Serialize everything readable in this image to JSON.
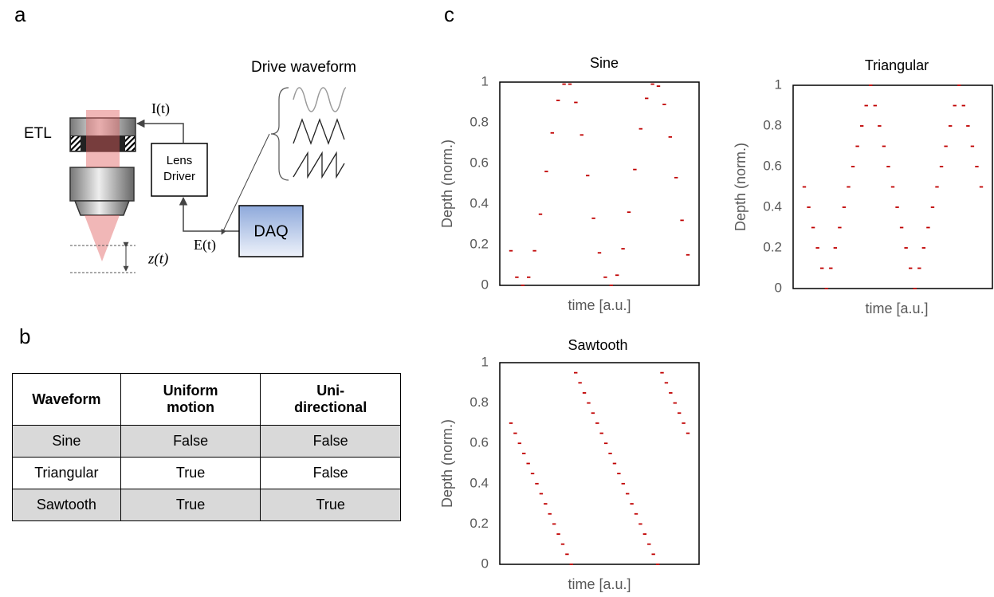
{
  "panel_labels": [
    "a",
    "b",
    "c"
  ],
  "diagram": {
    "drive_waveform": "Drive waveform",
    "etl": "ETL",
    "current": "I(t)",
    "lens_driver": [
      "Lens",
      "Driver"
    ],
    "daq": "DAQ",
    "voltage": "E(t)",
    "depth": "z(t)"
  },
  "table": {
    "header": [
      "Waveform",
      "Uniform motion",
      "Uni-directional"
    ],
    "rows": [
      [
        "Sine",
        "False",
        "False"
      ],
      [
        "Triangular",
        "True",
        "False"
      ],
      [
        "Sawtooth",
        "True",
        "True"
      ]
    ]
  },
  "chart_data": [
    {
      "type": "line",
      "title": "Sine",
      "xlabel": "time [a.u.]",
      "ylabel": "Depth (norm.)",
      "color": "#c00000",
      "values": [
        0.17,
        0.04,
        0,
        0.04,
        0.17,
        0.35,
        0.56,
        0.75,
        0.91,
        0.99,
        0.99,
        0.9,
        0.74,
        0.54,
        0.33,
        0.16,
        0.04,
        0,
        0.05,
        0.18,
        0.36,
        0.57,
        0.77,
        0.92,
        0.99,
        0.98,
        0.89,
        0.73,
        0.53,
        0.32,
        0.15
      ],
      "ylim": [
        0,
        1
      ],
      "yticks": [
        0,
        0.2,
        0.4,
        0.6,
        0.8,
        1
      ]
    },
    {
      "type": "line",
      "title": "Triangular",
      "xlabel": "time [a.u.]",
      "ylabel": "Depth (norm.)",
      "color": "#c00000",
      "values": [
        0.5,
        0.4,
        0.3,
        0.2,
        0.1,
        0,
        0.1,
        0.2,
        0.3,
        0.4,
        0.5,
        0.6,
        0.7,
        0.8,
        0.9,
        1,
        0.9,
        0.8,
        0.7,
        0.6,
        0.5,
        0.4,
        0.3,
        0.2,
        0.1,
        0,
        0.1,
        0.2,
        0.3,
        0.4,
        0.5,
        0.6,
        0.7,
        0.8,
        0.9,
        1,
        0.9,
        0.8,
        0.7,
        0.6,
        0.5
      ],
      "ylim": [
        0,
        1
      ],
      "yticks": [
        0,
        0.2,
        0.4,
        0.6,
        0.8,
        1
      ]
    },
    {
      "type": "line",
      "title": "Sawtooth",
      "xlabel": "time [a.u.]",
      "ylabel": "Depth (norm.)",
      "color": "#c00000",
      "values": [
        0.7,
        0.65,
        0.6,
        0.55,
        0.5,
        0.45,
        0.4,
        0.35,
        0.3,
        0.25,
        0.2,
        0.15,
        0.1,
        0.05,
        0,
        0.95,
        0.9,
        0.85,
        0.8,
        0.75,
        0.7,
        0.65,
        0.6,
        0.55,
        0.5,
        0.45,
        0.4,
        0.35,
        0.3,
        0.25,
        0.2,
        0.15,
        0.1,
        0.05,
        0,
        0.95,
        0.9,
        0.85,
        0.8,
        0.75,
        0.7,
        0.65
      ],
      "ylim": [
        0,
        1
      ],
      "yticks": [
        0,
        0.2,
        0.4,
        0.6,
        0.8,
        1
      ]
    }
  ]
}
